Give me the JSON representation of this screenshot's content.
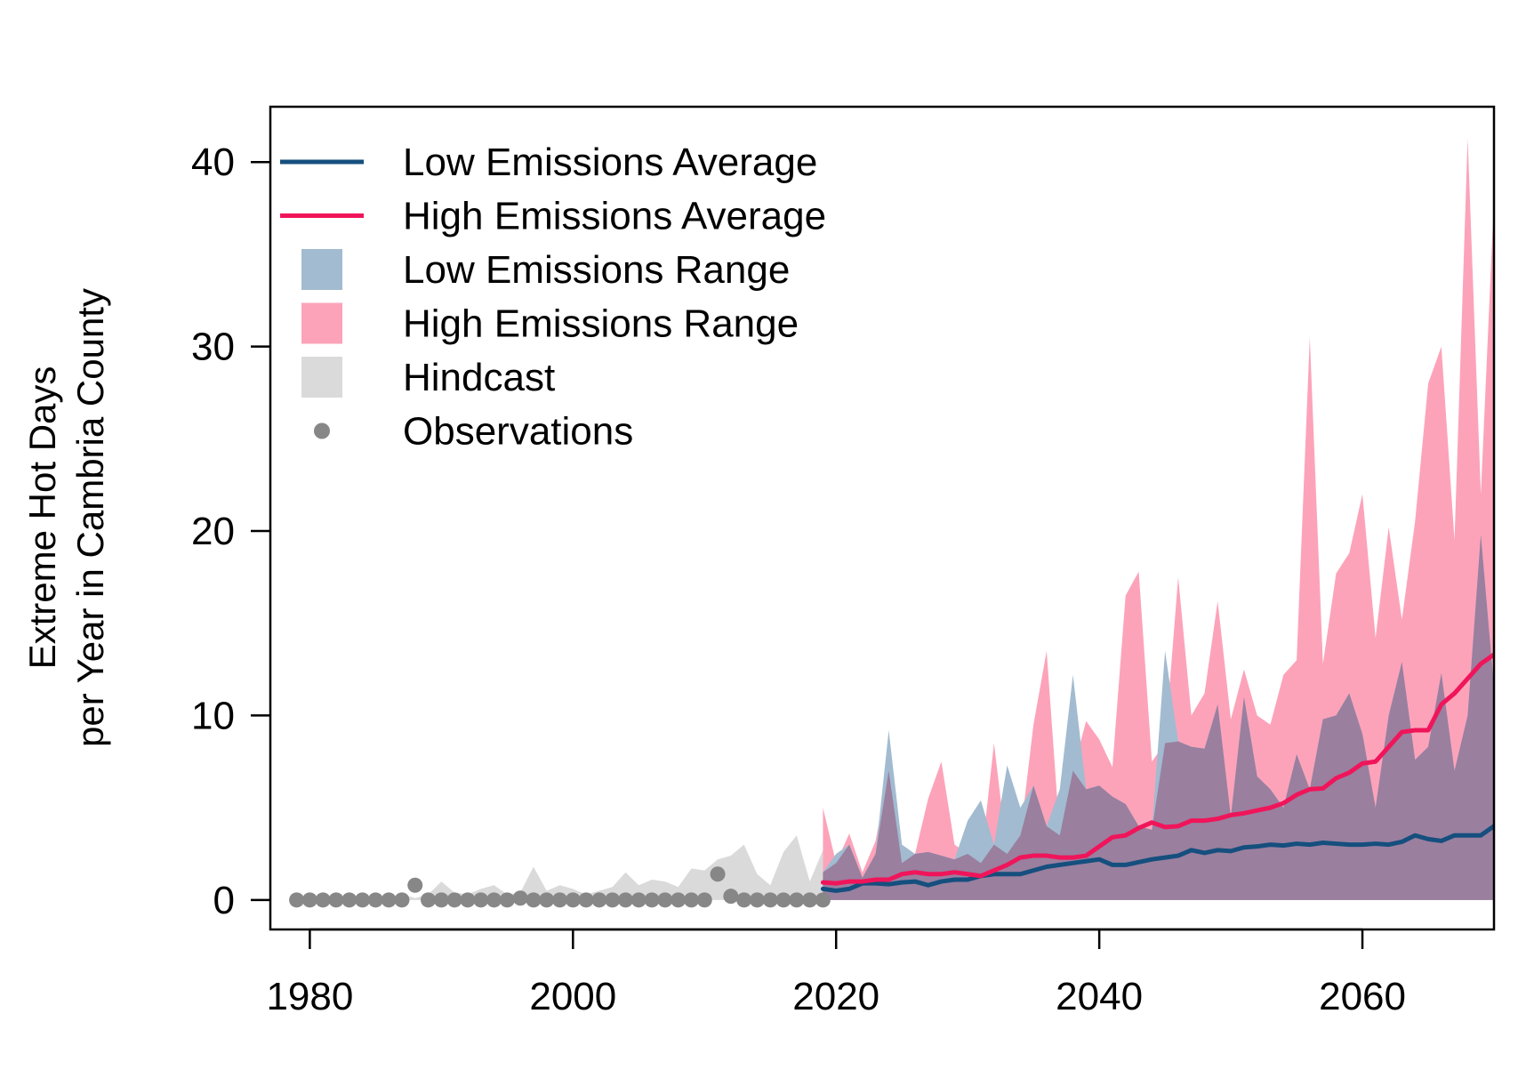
{
  "colors": {
    "low_line": "#154f7e",
    "high_line": "#f0155a",
    "low_range": "#a2bbd0",
    "high_range": "#fca3ba",
    "overlap": "#9a7f9f",
    "hindcast": "#dadada",
    "observations": "#878787"
  },
  "chart_data": {
    "type": "line",
    "title": "",
    "xlabel": "",
    "ylabel_lines": [
      "Extreme Hot Days",
      "per Year in Cambria County"
    ],
    "xlim": [
      1977,
      2070
    ],
    "ylim": [
      -1.6,
      43
    ],
    "x_ticks": [
      1980,
      2000,
      2020,
      2040,
      2060
    ],
    "y_ticks": [
      0,
      10,
      20,
      30,
      40
    ],
    "grid": false,
    "legend_position": "top-left",
    "legend": [
      {
        "label": "Low Emissions Average",
        "kind": "line",
        "color_key": "low_line"
      },
      {
        "label": "High Emissions Average",
        "kind": "line",
        "color_key": "high_line"
      },
      {
        "label": "Low Emissions Range",
        "kind": "box",
        "color_key": "low_range"
      },
      {
        "label": "High Emissions Range",
        "kind": "box",
        "color_key": "high_range"
      },
      {
        "label": "Hindcast",
        "kind": "box",
        "color_key": "hindcast"
      },
      {
        "label": "Observations",
        "kind": "point",
        "color_key": "observations"
      }
    ],
    "observations": {
      "name": "Observations",
      "x": [
        1979,
        1980,
        1981,
        1982,
        1983,
        1984,
        1985,
        1986,
        1987,
        1988,
        1989,
        1990,
        1991,
        1992,
        1993,
        1994,
        1995,
        1996,
        1997,
        1998,
        1999,
        2000,
        2001,
        2002,
        2003,
        2004,
        2005,
        2006,
        2007,
        2008,
        2009,
        2010,
        2011,
        2012,
        2013,
        2014,
        2015,
        2016,
        2017,
        2018,
        2019
      ],
      "y": [
        0,
        0,
        0,
        0,
        0,
        0,
        0,
        0,
        0,
        0.8,
        0,
        0,
        0,
        0,
        0,
        0,
        0,
        0.1,
        0,
        0,
        0,
        0,
        0,
        0,
        0,
        0,
        0,
        0,
        0,
        0,
        0,
        0,
        1.4,
        0.2,
        0,
        0,
        0,
        0,
        0,
        0,
        0
      ]
    },
    "hindcast_max": {
      "name": "Hindcast",
      "x": [
        1979,
        1980,
        1981,
        1982,
        1983,
        1984,
        1985,
        1986,
        1987,
        1988,
        1989,
        1990,
        1991,
        1992,
        1993,
        1994,
        1995,
        1996,
        1997,
        1998,
        1999,
        2000,
        2001,
        2002,
        2003,
        2004,
        2005,
        2006,
        2007,
        2008,
        2009,
        2010,
        2011,
        2012,
        2013,
        2014,
        2015,
        2016,
        2017,
        2018,
        2019
      ],
      "y": [
        0,
        0,
        0,
        0,
        0,
        0,
        0,
        0,
        0.3,
        0.1,
        0.3,
        1.0,
        0.4,
        0.3,
        0.6,
        0.8,
        0.3,
        0.4,
        1.8,
        0.5,
        0.8,
        0.6,
        0.3,
        0.5,
        0.7,
        1.5,
        0.8,
        1.1,
        1.0,
        0.7,
        1.7,
        1.6,
        2.2,
        2.4,
        3.0,
        1.4,
        0.8,
        2.6,
        3.5,
        1.0,
        2.7
      ]
    },
    "years": [
      2019,
      2020,
      2021,
      2022,
      2023,
      2024,
      2025,
      2026,
      2027,
      2028,
      2029,
      2030,
      2031,
      2032,
      2033,
      2034,
      2035,
      2036,
      2037,
      2038,
      2039,
      2040,
      2041,
      2042,
      2043,
      2044,
      2045,
      2046,
      2047,
      2048,
      2049,
      2050,
      2051,
      2052,
      2053,
      2054,
      2055,
      2056,
      2057,
      2058,
      2059,
      2060,
      2061,
      2062,
      2063,
      2064,
      2065,
      2066,
      2067,
      2068,
      2069,
      2070
    ],
    "low_range_max": [
      1.5,
      2.5,
      3.0,
      1.2,
      2.5,
      9.2,
      3.0,
      2.5,
      2.6,
      2.4,
      2.2,
      4.3,
      5.4,
      3.0,
      7.3,
      5.0,
      6.2,
      4.0,
      6.0,
      12.2,
      6.0,
      6.2,
      5.6,
      5.2,
      4.0,
      3.8,
      13.5,
      8.6,
      8.3,
      8.2,
      10.6,
      4.5,
      11.0,
      6.7,
      6.0,
      5.0,
      7.9,
      6.0,
      9.8,
      10.0,
      11.2,
      9.0,
      5.0,
      10.0,
      12.9,
      7.6,
      8.3,
      12.3,
      7.0,
      10.0,
      19.8,
      11.5
    ],
    "high_range_max": [
      5.0,
      2.0,
      3.6,
      1.5,
      3.2,
      7.0,
      2.0,
      2.5,
      5.5,
      7.5,
      3.0,
      2.5,
      2.0,
      8.5,
      2.5,
      3.5,
      9.5,
      13.5,
      3.5,
      7.0,
      9.7,
      8.7,
      7.2,
      16.5,
      17.8,
      7.5,
      8.5,
      17.5,
      10.0,
      11.2,
      16.2,
      9.8,
      12.5,
      10.0,
      9.5,
      12.2,
      13.0,
      30.5,
      12.8,
      17.7,
      18.8,
      22.0,
      14.2,
      20.2,
      15.2,
      20.5,
      28.0,
      30.0,
      19.5,
      41.3,
      22.0,
      38.0
    ],
    "series": [
      {
        "name": "Low Emissions Average",
        "color_key": "low_line",
        "values": [
          0.6,
          0.5,
          0.6,
          0.9,
          0.9,
          0.85,
          0.95,
          1.0,
          0.8,
          1.0,
          1.1,
          1.1,
          1.3,
          1.4,
          1.4,
          1.4,
          1.6,
          1.8,
          1.9,
          2.0,
          2.1,
          2.2,
          1.9,
          1.9,
          2.05,
          2.2,
          2.3,
          2.4,
          2.7,
          2.55,
          2.7,
          2.65,
          2.85,
          2.9,
          3.0,
          2.95,
          3.05,
          3.0,
          3.1,
          3.05,
          3.0,
          3.0,
          3.05,
          3.0,
          3.15,
          3.5,
          3.3,
          3.2,
          3.5,
          3.5,
          3.5,
          4.0
        ]
      },
      {
        "name": "High Emissions Average",
        "color_key": "high_line",
        "values": [
          0.95,
          0.9,
          1.0,
          1.0,
          1.1,
          1.1,
          1.4,
          1.5,
          1.4,
          1.4,
          1.5,
          1.4,
          1.3,
          1.6,
          1.9,
          2.3,
          2.4,
          2.4,
          2.3,
          2.3,
          2.4,
          2.9,
          3.4,
          3.5,
          3.9,
          4.2,
          3.95,
          4.0,
          4.3,
          4.3,
          4.4,
          4.6,
          4.7,
          4.85,
          5.0,
          5.25,
          5.7,
          6.0,
          6.05,
          6.6,
          6.9,
          7.4,
          7.5,
          8.3,
          9.1,
          9.2,
          9.2,
          10.6,
          11.2,
          12.0,
          12.8,
          13.3
        ]
      }
    ]
  }
}
